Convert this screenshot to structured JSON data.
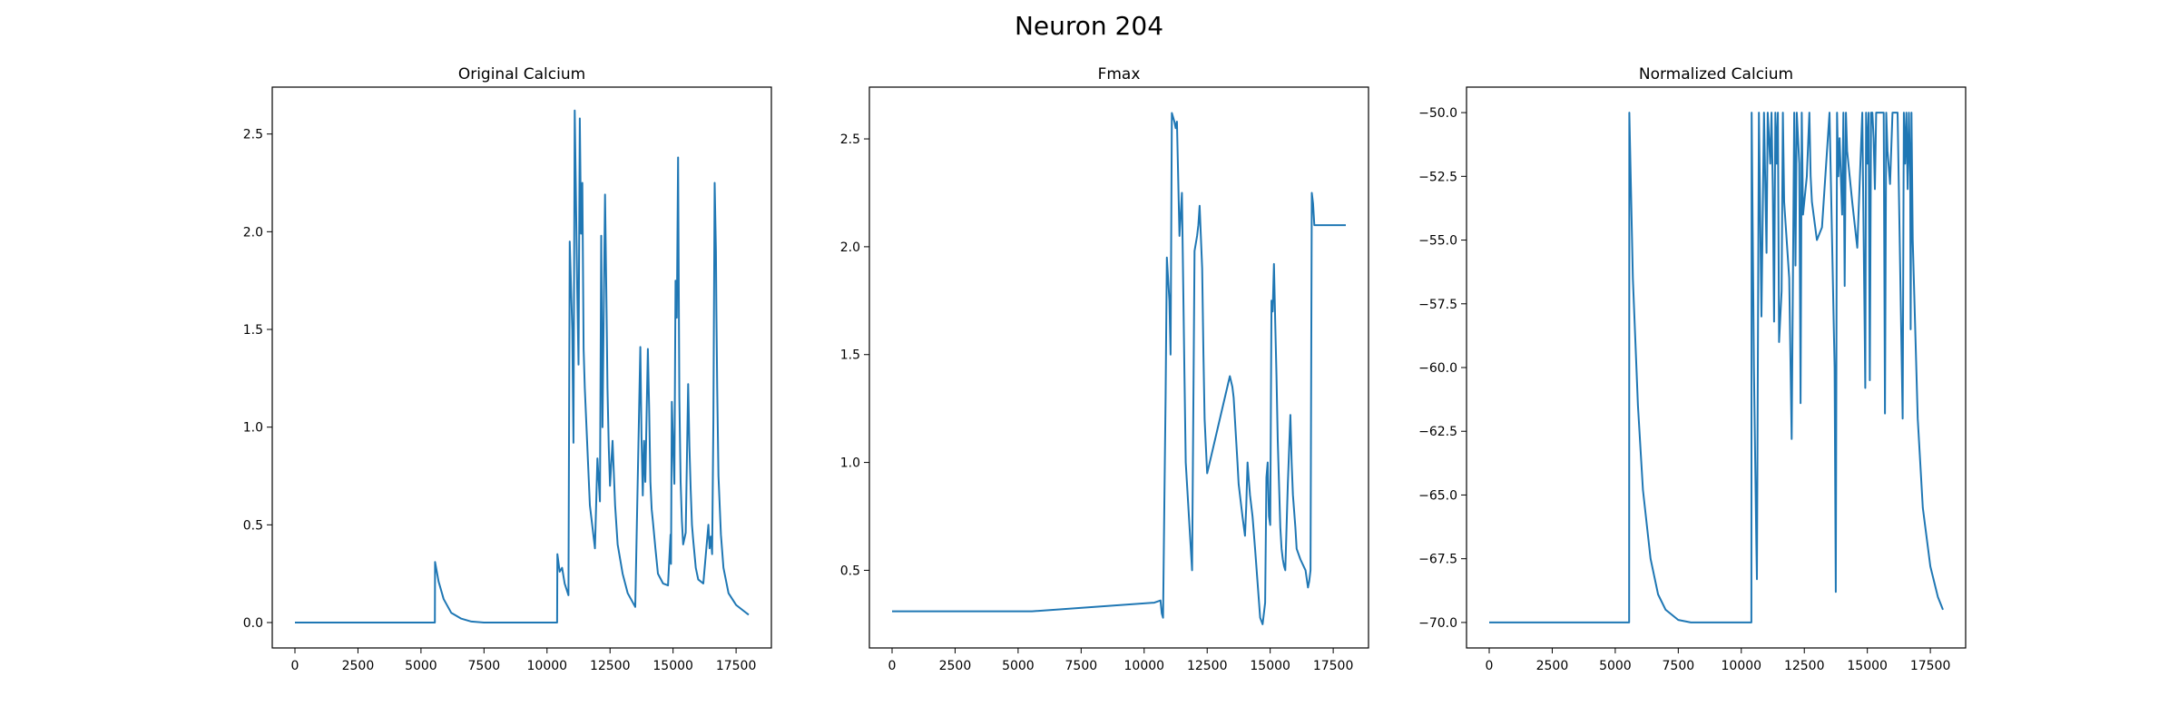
{
  "figure": {
    "title": "Neuron 204",
    "line_color": "#1f77b4"
  },
  "chart_data": [
    {
      "type": "line",
      "title": "Original Calcium",
      "xlim": [
        -900,
        18900
      ],
      "ylim": [
        -0.13,
        2.74
      ],
      "xticks": [
        0,
        2500,
        5000,
        7500,
        10000,
        12500,
        15000,
        17500
      ],
      "yticks": [
        0.0,
        0.5,
        1.0,
        1.5,
        2.0,
        2.5
      ],
      "ytick_labels": [
        "0.0",
        "0.5",
        "1.0",
        "1.5",
        "2.0",
        "2.5"
      ],
      "series": [
        {
          "x": [
            0,
            5550,
            5560,
            5700,
            5900,
            6200,
            6600,
            7000,
            7500,
            8000,
            10400,
            10410,
            10500,
            10600,
            10700,
            10800,
            10850,
            10900,
            11000,
            11050,
            11100,
            11200,
            11250,
            11300,
            11350,
            11400,
            11450,
            11500,
            11600,
            11700,
            11900,
            12000,
            12100,
            12150,
            12200,
            12300,
            12350,
            12400,
            12450,
            12500,
            12600,
            12700,
            12750,
            12800,
            13000,
            13200,
            13500,
            13700,
            13750,
            13800,
            13850,
            13900,
            14000,
            14050,
            14100,
            14150,
            14200,
            14300,
            14400,
            14600,
            14800,
            14900,
            14920,
            14950,
            15000,
            15050,
            15100,
            15150,
            15200,
            15250,
            15300,
            15350,
            15400,
            15500,
            15600,
            15650,
            15700,
            15750,
            15800,
            15850,
            15900,
            16000,
            16200,
            16400,
            16450,
            16500,
            16550,
            16600,
            16650,
            16700,
            16720,
            16750,
            16800,
            16900,
            17000,
            17200,
            17500,
            17800,
            18000
          ],
          "y": [
            0.0,
            0.0,
            0.31,
            0.21,
            0.12,
            0.05,
            0.02,
            0.005,
            0.0,
            0.0,
            0.0,
            0.35,
            0.26,
            0.28,
            0.2,
            0.16,
            0.14,
            1.95,
            1.5,
            0.92,
            2.62,
            1.7,
            1.32,
            2.58,
            1.99,
            2.25,
            1.4,
            1.2,
            0.9,
            0.6,
            0.38,
            0.84,
            0.62,
            1.98,
            1.0,
            2.19,
            1.7,
            1.2,
            0.9,
            0.7,
            0.93,
            0.6,
            0.5,
            0.4,
            0.25,
            0.15,
            0.08,
            1.41,
            0.95,
            0.65,
            0.93,
            0.72,
            1.4,
            1.1,
            0.72,
            0.58,
            0.52,
            0.38,
            0.25,
            0.2,
            0.19,
            0.45,
            0.3,
            1.13,
            0.9,
            0.71,
            1.75,
            1.56,
            2.38,
            1.15,
            0.72,
            0.52,
            0.4,
            0.46,
            1.22,
            0.9,
            0.68,
            0.5,
            0.42,
            0.35,
            0.28,
            0.22,
            0.2,
            0.5,
            0.38,
            0.44,
            0.35,
            1.04,
            2.25,
            1.9,
            1.6,
            1.2,
            0.75,
            0.45,
            0.28,
            0.15,
            0.09,
            0.06,
            0.04
          ]
        }
      ]
    },
    {
      "type": "line",
      "title": "Fmax",
      "xlim": [
        -900,
        18900
      ],
      "ylim": [
        0.14,
        2.74
      ],
      "xticks": [
        0,
        2500,
        5000,
        7500,
        10000,
        12500,
        15000,
        17500
      ],
      "yticks": [
        0.5,
        1.0,
        1.5,
        2.0,
        2.5
      ],
      "ytick_labels": [
        "0.5",
        "1.0",
        "1.5",
        "2.0",
        "2.5"
      ],
      "series": [
        {
          "x": [
            0,
            5550,
            10400,
            10650,
            10700,
            10750,
            10800,
            10850,
            10900,
            11000,
            11050,
            11100,
            11200,
            11250,
            11300,
            11400,
            11500,
            11600,
            11650,
            11700,
            11900,
            12000,
            12100,
            12150,
            12200,
            12300,
            12350,
            12400,
            12500,
            12700,
            13000,
            13400,
            13500,
            13550,
            13600,
            13700,
            13750,
            13800,
            13850,
            13900,
            14000,
            14050,
            14100,
            14150,
            14200,
            14300,
            14400,
            14600,
            14700,
            14800,
            14850,
            14900,
            14950,
            15000,
            15050,
            15100,
            15150,
            15200,
            15250,
            15300,
            15350,
            15400,
            15450,
            15500,
            15550,
            15600,
            15650,
            15700,
            15800,
            15850,
            15900,
            16000,
            16050,
            16200,
            16400,
            16500,
            16550,
            16600,
            16650,
            16700,
            16750,
            16800,
            17000,
            17200,
            17500,
            18000
          ],
          "y": [
            0.31,
            0.31,
            0.35,
            0.36,
            0.3,
            0.28,
            0.8,
            1.3,
            1.95,
            1.75,
            1.5,
            2.62,
            2.58,
            2.55,
            2.58,
            2.05,
            2.25,
            1.4,
            1.0,
            0.9,
            0.5,
            1.98,
            2.05,
            2.1,
            2.19,
            1.9,
            1.5,
            1.2,
            0.95,
            1.05,
            1.2,
            1.4,
            1.35,
            1.3,
            1.2,
            1.0,
            0.9,
            0.85,
            0.8,
            0.75,
            0.66,
            0.8,
            1.0,
            0.92,
            0.85,
            0.75,
            0.6,
            0.28,
            0.25,
            0.35,
            0.93,
            1.0,
            0.75,
            0.71,
            1.75,
            1.7,
            1.92,
            1.65,
            1.4,
            1.1,
            0.9,
            0.7,
            0.6,
            0.55,
            0.52,
            0.5,
            0.7,
            0.9,
            1.22,
            1.0,
            0.85,
            0.7,
            0.6,
            0.55,
            0.5,
            0.42,
            0.45,
            0.5,
            2.25,
            2.2,
            2.1,
            2.1,
            2.1,
            2.1,
            2.1,
            2.1
          ]
        }
      ]
    },
    {
      "type": "line",
      "title": "Normalized Calcium",
      "xlim": [
        -900,
        18900
      ],
      "ylim": [
        -71.0,
        -49.0
      ],
      "xticks": [
        0,
        2500,
        5000,
        7500,
        10000,
        12500,
        15000,
        17500
      ],
      "yticks": [
        -70.0,
        -67.5,
        -65.0,
        -62.5,
        -60.0,
        -57.5,
        -55.0,
        -52.5,
        -50.0
      ],
      "ytick_labels": [
        "−70.0",
        "−67.5",
        "−65.0",
        "−62.5",
        "−60.0",
        "−57.5",
        "−55.0",
        "−52.5",
        "−50.0"
      ],
      "series": [
        {
          "x": [
            0,
            5550,
            5560,
            5700,
            5900,
            6100,
            6400,
            6700,
            7000,
            7500,
            8000,
            10400,
            10410,
            10500,
            10600,
            10620,
            10700,
            10800,
            10900,
            11000,
            11050,
            11150,
            11200,
            11250,
            11300,
            11350,
            11400,
            11450,
            11500,
            11600,
            11650,
            11700,
            11900,
            12000,
            12100,
            12150,
            12200,
            12300,
            12350,
            12400,
            12450,
            12600,
            12700,
            12750,
            12800,
            13000,
            13200,
            13500,
            13700,
            13750,
            13800,
            13850,
            13900,
            14000,
            14050,
            14100,
            14150,
            14200,
            14300,
            14400,
            14600,
            14800,
            14900,
            14920,
            14950,
            15000,
            15050,
            15100,
            15150,
            15200,
            15250,
            15300,
            15350,
            15400,
            15500,
            15600,
            15650,
            15700,
            15750,
            15800,
            15900,
            16000,
            16200,
            16400,
            16450,
            16500,
            16550,
            16600,
            16650,
            16700,
            16720,
            16750,
            16800,
            17000,
            17200,
            17500,
            17800,
            18000
          ],
          "y": [
            -70.0,
            -70.0,
            -50.0,
            -56.5,
            -61.5,
            -64.8,
            -67.5,
            -68.9,
            -69.5,
            -69.9,
            -70.0,
            -70.0,
            -50.0,
            -60.0,
            -67.0,
            -68.3,
            -50.0,
            -58.0,
            -50.0,
            -55.5,
            -50.0,
            -52.0,
            -50.0,
            -53.0,
            -58.2,
            -50.0,
            -52.0,
            -50.0,
            -59.0,
            -57.0,
            -50.0,
            -53.5,
            -56.5,
            -62.8,
            -50.0,
            -56.0,
            -50.0,
            -52.0,
            -61.4,
            -50.0,
            -54.0,
            -52.5,
            -50.0,
            -52.5,
            -53.5,
            -55.0,
            -54.5,
            -50.0,
            -60.0,
            -68.8,
            -50.0,
            -52.5,
            -51.0,
            -54.0,
            -50.0,
            -56.8,
            -50.0,
            -51.5,
            -52.5,
            -53.5,
            -55.3,
            -50.0,
            -59.0,
            -60.8,
            -50.0,
            -52.0,
            -50.0,
            -60.5,
            -50.0,
            -50.0,
            -51.0,
            -53.0,
            -50.0,
            -50.0,
            -50.0,
            -50.0,
            -50.0,
            -61.8,
            -50.0,
            -51.5,
            -52.8,
            -50.0,
            -50.0,
            -62.0,
            -50.0,
            -52.0,
            -50.0,
            -53.0,
            -50.0,
            -52.5,
            -58.5,
            -50.0,
            -55.0,
            -62.0,
            -65.5,
            -67.8,
            -69.0,
            -69.5
          ]
        }
      ]
    }
  ]
}
